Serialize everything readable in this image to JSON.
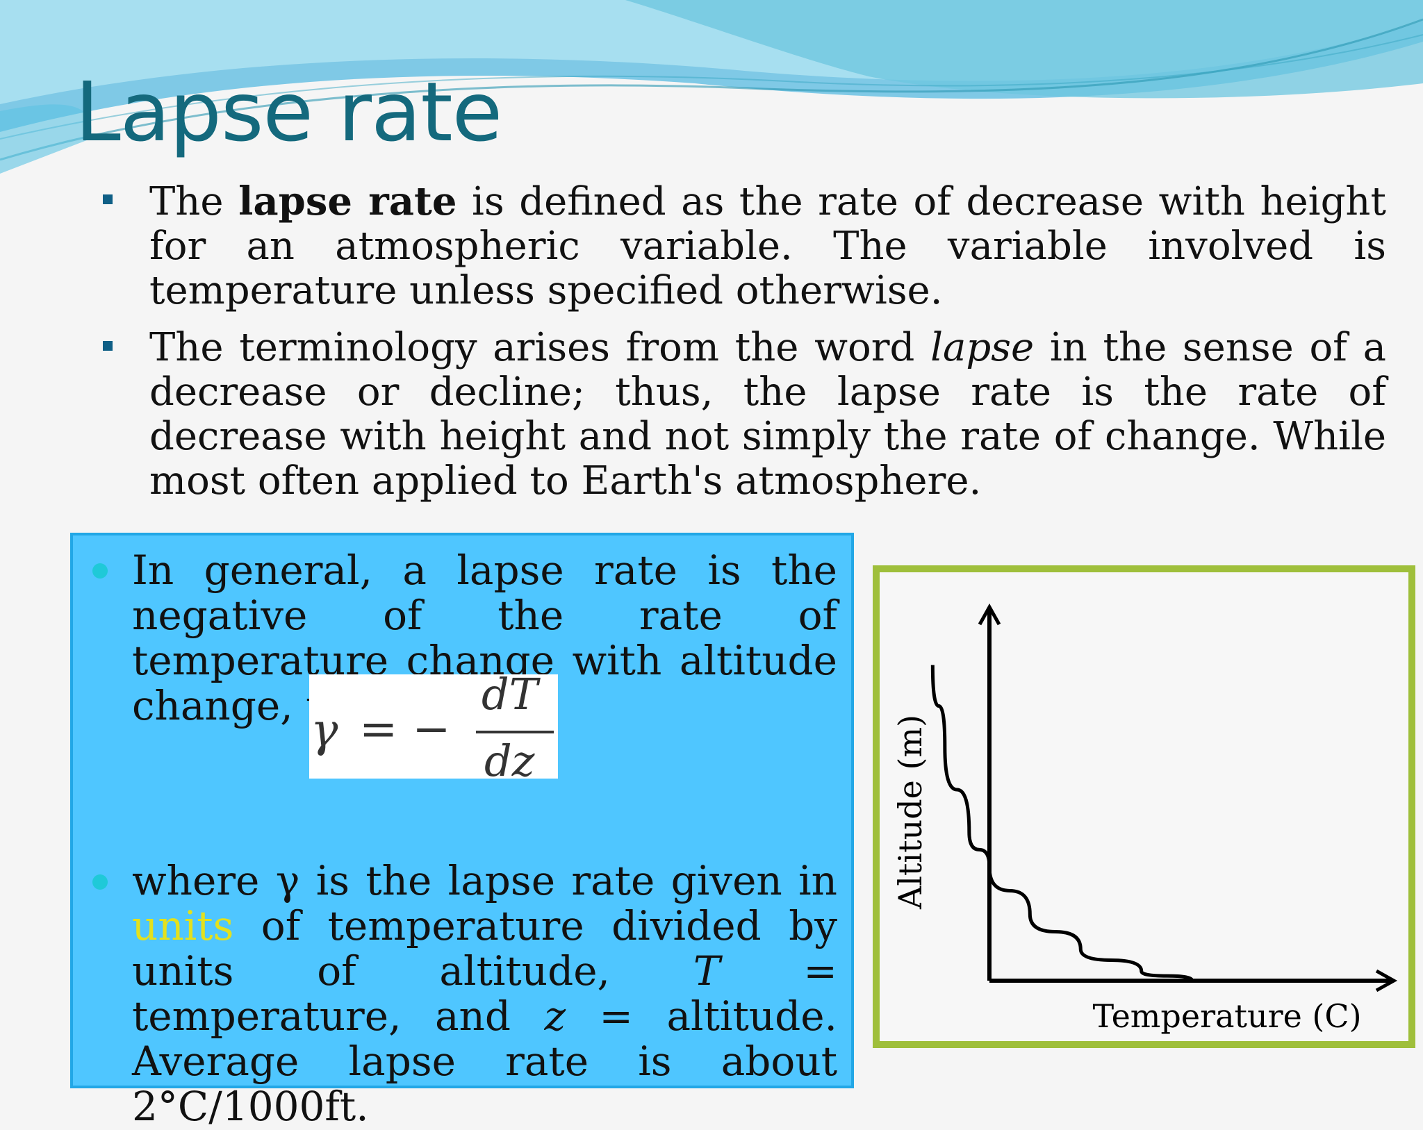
{
  "slide": {
    "title": "Lapse rate",
    "bullets": {
      "b1_pre": "The ",
      "b1_bold": "lapse rate",
      "b1_post": " is defined as the rate of decrease with height for an atmospheric variable. The variable involved is temperature unless specified otherwise.",
      "b2_pre": "The terminology arises from the word ",
      "b2_italic": "lapse",
      "b2_post": " in the sense of a decrease or decline; thus, the lapse rate is the rate of decrease with height and not simply the rate of change. While most often applied to Earth's atmosphere."
    },
    "box": {
      "p1": "In general, a lapse rate is the negative of the rate of temperature change with altitude change, t",
      "p2_pre": "where γ is the lapse rate given in ",
      "p2_link": "units",
      "p2_mid": " of temperature divided by units of altitude, ",
      "p2_T": "T",
      "p2_mid2": " = temperature, and ",
      "p2_z": "z",
      "p2_post": " = altitude. Average lapse rate is about 2°C/1000ft."
    },
    "formula": {
      "gamma": "γ",
      "equals_minus": "= −",
      "numerator": "dT",
      "denominator": "dz"
    },
    "colors": {
      "title": "#14697d",
      "box_fill": "#4fc6ff",
      "frame": "#9fbf3b",
      "link": "#e3e11d"
    }
  },
  "chart_data": {
    "type": "line",
    "xlabel": "Temperature (C)",
    "ylabel": "Altitude (m)",
    "series": [
      {
        "x": [
          -0.28,
          -0.22,
          -0.1,
          0.0,
          0.2,
          0.45,
          0.75,
          1.0
        ],
        "y": [
          1.0,
          0.74,
          0.47,
          0.36,
          0.21,
          0.1,
          0.03,
          0.0
        ]
      }
    ],
    "xlim": [
      -0.35,
      2.05
    ],
    "ylim": [
      0,
      1.1
    ],
    "grid": false,
    "legend": false
  }
}
